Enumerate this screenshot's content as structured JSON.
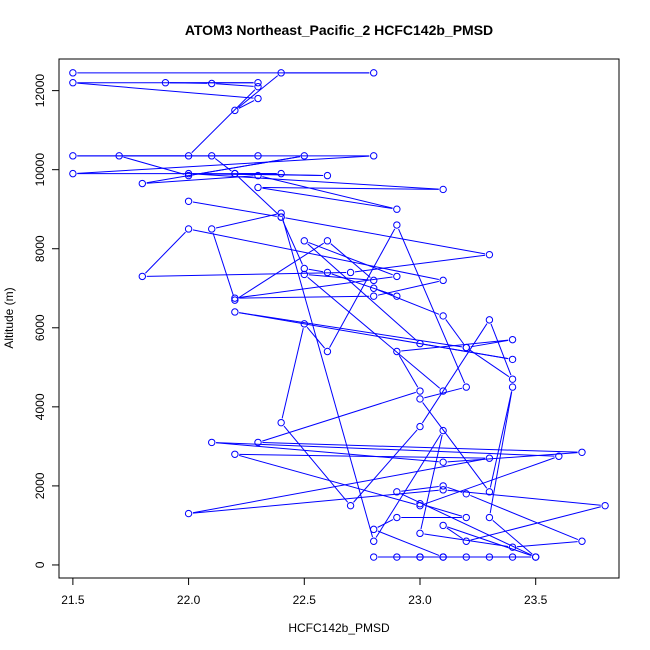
{
  "chart_data": {
    "type": "line",
    "title": "ATOM3 Northeast_Pacific_2 HCFC142b_PMSD",
    "xlabel": "HCFC142b_PMSD",
    "ylabel": "Altitude (m)",
    "xlim": [
      21.44,
      23.86
    ],
    "ylim": [
      -330,
      12800
    ],
    "x_ticks": [
      21.5,
      22.0,
      22.5,
      23.0,
      23.5
    ],
    "x_tick_labels": [
      "21.5",
      "22.0",
      "22.5",
      "23.0",
      "23.5"
    ],
    "y_ticks": [
      0,
      2000,
      4000,
      6000,
      8000,
      10000,
      12000
    ],
    "y_tick_labels": [
      "0",
      "2000",
      "4000",
      "6000",
      "8000",
      "10000",
      "12000"
    ],
    "grid": false,
    "legend": "none",
    "color": "#0000ff",
    "marker": "open-circle",
    "series": [
      {
        "x": [
          21.5,
          22.8,
          22.4,
          22.2,
          22.3,
          21.5,
          22.3,
          21.9,
          22.1,
          22.3,
          22.0,
          21.5,
          22.8,
          21.5,
          22.4,
          22.2,
          22.1,
          22.3,
          21.7,
          22.0,
          22.5,
          21.8,
          22.3,
          22.9,
          22.3,
          23.1,
          22.0,
          22.6,
          22.2,
          22.4,
          23.3,
          22.7,
          21.8,
          22.0,
          23.1,
          22.8,
          22.2,
          22.9,
          22.5,
          23.0,
          23.4,
          22.2,
          23.2,
          23.4,
          22.9,
          23.0,
          22.3,
          23.7,
          23.1,
          22.1,
          23.6,
          23.0,
          22.2,
          23.3,
          22.0,
          23.1,
          23.8,
          23.2,
          23.1,
          23.5,
          23.0,
          22.8,
          23.4,
          23.1,
          22.9,
          23.2,
          23.0,
          23.3,
          23.1,
          22.8,
          22.9,
          23.2,
          23.0
        ],
        "y": [
          12450,
          12450,
          12450,
          11500,
          11800,
          12200,
          12200,
          12200,
          12180,
          12100,
          10350,
          10350,
          10350,
          9900,
          9900,
          9900,
          10350,
          10350,
          10350,
          9850,
          10350,
          9650,
          9850,
          9000,
          9550,
          9500,
          9900,
          9850,
          9900,
          8800,
          7850,
          7400,
          7300,
          8500,
          7200,
          6800,
          6750,
          7300,
          8200,
          5600,
          5200,
          6400,
          5500,
          5700,
          5400,
          4400,
          3100,
          2850,
          2600,
          3100,
          2750,
          1500,
          2800,
          2700,
          1300,
          1900,
          1500,
          600,
          1000,
          200,
          200,
          200,
          200,
          200,
          200,
          200,
          200,
          200,
          200,
          900,
          1200,
          1200,
          1550
        ]
      },
      {
        "x": [
          22.0,
          22.4,
          22.5,
          22.6,
          22.9,
          22.8,
          23.1,
          23.2,
          23.4,
          23.3,
          23.0,
          22.7,
          22.4,
          22.5,
          22.6,
          22.9,
          23.2,
          23.0,
          23.3,
          23.4,
          23.3,
          23.5,
          22.9,
          23.1,
          23.2,
          23.7,
          23.4,
          23.0,
          23.1,
          22.8,
          22.4,
          22.1,
          22.2,
          22.6,
          22.8,
          22.5,
          23.1
        ],
        "y": [
          9200,
          8800,
          7500,
          7400,
          6800,
          7000,
          6300,
          5500,
          4700,
          6200,
          3500,
          1500,
          3600,
          6100,
          5400,
          8600,
          4500,
          4200,
          1850,
          4500,
          1200,
          200,
          1850,
          2000,
          1800,
          600,
          450,
          800,
          3400,
          600,
          8900,
          8500,
          6700,
          8200,
          7200,
          7350,
          4400
        ]
      }
    ]
  }
}
